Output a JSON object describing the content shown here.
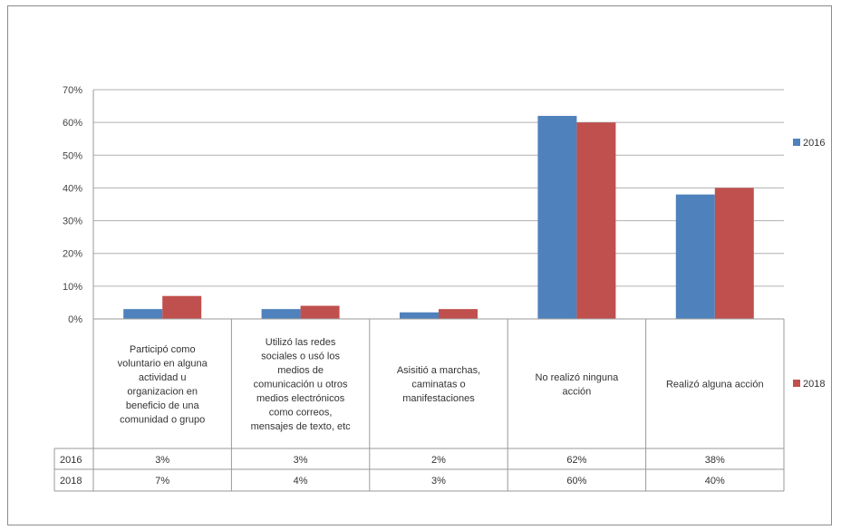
{
  "chart_data": {
    "type": "bar",
    "categories": [
      "Participó como voluntario en alguna actividad u organizacion en beneficio de una comunidad o grupo",
      "Utilizó las redes sociales o usó los medios de comunicación u otros medios electrónicos como correos, mensajes de texto, etc",
      "Asisitió  a marchas, caminatas o manifestaciones",
      "No realizó ninguna acción",
      "Realizó alguna acción"
    ],
    "category_lines": [
      [
        "Participó como",
        "voluntario en alguna",
        "actividad u",
        "organizacion en",
        "beneficio de una",
        "comunidad o grupo"
      ],
      [
        "Utilizó las redes",
        "sociales o usó los",
        "medios de",
        "comunicación u otros",
        "medios electrónicos",
        "como correos,",
        "mensajes de texto, etc"
      ],
      [
        "Asisitió  a marchas,",
        "caminatas o",
        "manifestaciones"
      ],
      [
        "No realizó ninguna",
        "acción"
      ],
      [
        "Realizó alguna acción"
      ]
    ],
    "series": [
      {
        "name": "2016",
        "values": [
          3,
          3,
          2,
          62,
          38
        ],
        "labels": [
          "3%",
          "3%",
          "2%",
          "62%",
          "38%"
        ],
        "color": "#4f81bd"
      },
      {
        "name": "2018",
        "values": [
          7,
          4,
          3,
          60,
          40
        ],
        "labels": [
          "7%",
          "4%",
          "3%",
          "60%",
          "40%"
        ],
        "color": "#c0504d"
      }
    ],
    "ylim": [
      0,
      70
    ],
    "yticks": [
      "0%",
      "10%",
      "20%",
      "30%",
      "40%",
      "50%",
      "60%",
      "70%"
    ],
    "grid": true,
    "legend_position": "right",
    "data_table": true
  }
}
